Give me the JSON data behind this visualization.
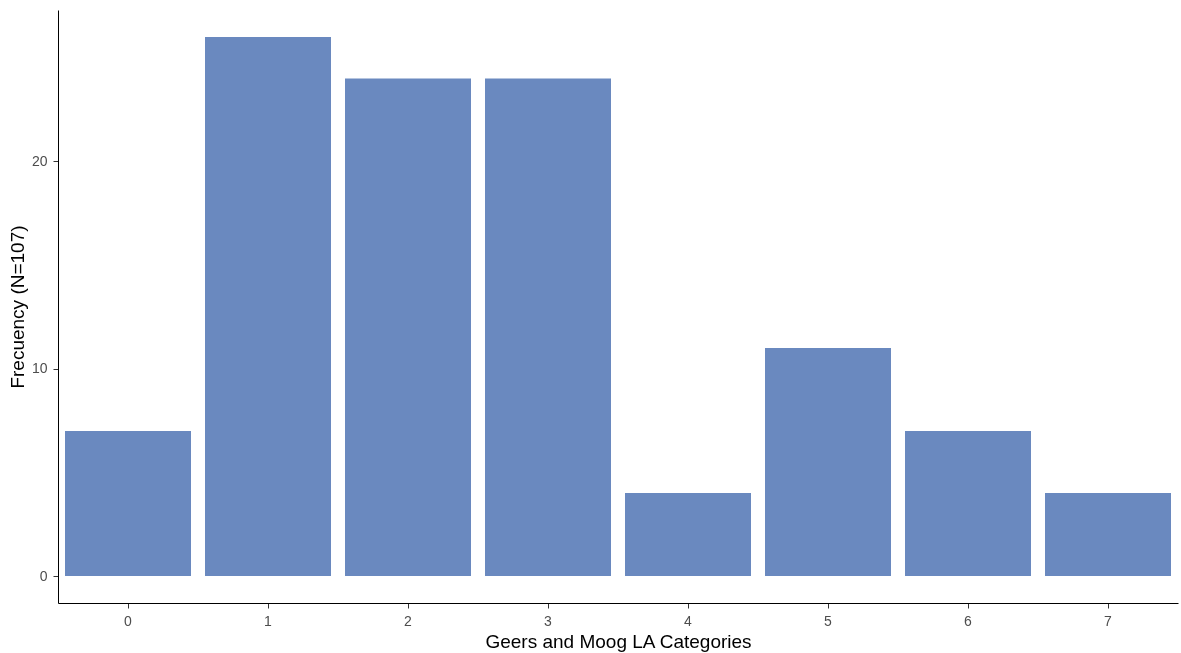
{
  "chart_data": {
    "type": "bar",
    "xlabel": "Geers and Moog LA Categories",
    "ylabel": "Frecuency (N=107)",
    "categories": [
      "0",
      "1",
      "2",
      "3",
      "4",
      "5",
      "6",
      "7"
    ],
    "values": [
      7,
      26,
      24,
      24,
      4,
      11,
      7,
      4
    ],
    "color": "#6a89bf",
    "ylim": [
      -1.3,
      27.3
    ],
    "yticks": [
      0,
      10,
      20
    ],
    "grid": false
  }
}
